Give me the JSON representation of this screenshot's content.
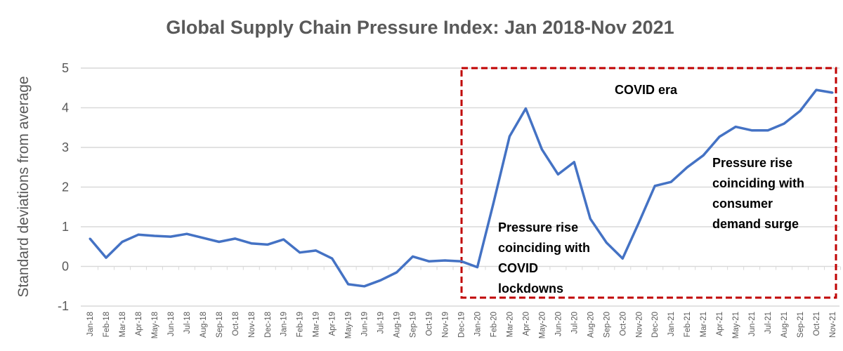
{
  "chart_data": {
    "type": "line",
    "title": "Global Supply Chain Pressure Index: Jan 2018-Nov 2021",
    "xlabel": "",
    "ylabel": "Standard deviations from average",
    "ylim": [
      -1,
      5
    ],
    "yticks": [
      "-1",
      "0",
      "1",
      "2",
      "3",
      "4",
      "5"
    ],
    "grid": true,
    "legend": "none",
    "line_color": "#4472C4",
    "categories": [
      "Jan-18",
      "Feb-18",
      "Mar-18",
      "Apr-18",
      "May-18",
      "Jun-18",
      "Jul-18",
      "Aug-18",
      "Sep-18",
      "Oct-18",
      "Nov-18",
      "Dec-18",
      "Jan-19",
      "Feb-19",
      "Mar-19",
      "Apr-19",
      "May-19",
      "Jun-19",
      "Jul-19",
      "Aug-19",
      "Sep-19",
      "Oct-19",
      "Nov-19",
      "Dec-19",
      "Jan-20",
      "Feb-20",
      "Mar-20",
      "Apr-20",
      "May-20",
      "Jun-20",
      "Jul-20",
      "Aug-20",
      "Sep-20",
      "Oct-20",
      "Nov-20",
      "Dec-20",
      "Jan-21",
      "Feb-21",
      "Mar-21",
      "Apr-21",
      "May-21",
      "Jun-21",
      "Jul-21",
      "Aug-21",
      "Sep-21",
      "Oct-21",
      "Nov-21"
    ],
    "values": [
      0.7,
      0.22,
      0.62,
      0.8,
      0.77,
      0.75,
      0.82,
      0.72,
      0.62,
      0.7,
      0.58,
      0.55,
      0.68,
      0.35,
      0.4,
      0.2,
      -0.45,
      -0.5,
      -0.35,
      -0.15,
      0.25,
      0.13,
      0.15,
      0.13,
      -0.02,
      1.6,
      3.28,
      3.98,
      2.95,
      2.32,
      2.63,
      1.2,
      0.6,
      0.2,
      1.1,
      2.03,
      2.13,
      2.5,
      2.8,
      3.27,
      3.52,
      3.43,
      3.43,
      3.6,
      3.92,
      4.45,
      4.38
    ],
    "highlight_box": {
      "from": "Jan-20",
      "to": "Nov-21",
      "color": "#C00000",
      "label": "COVID era"
    },
    "annotations": {
      "lockdowns": [
        "Pressure rise",
        "coinciding with",
        "COVID",
        "lockdowns"
      ],
      "demand": [
        "Pressure rise",
        "coinciding with",
        "consumer",
        "demand surge"
      ]
    }
  }
}
